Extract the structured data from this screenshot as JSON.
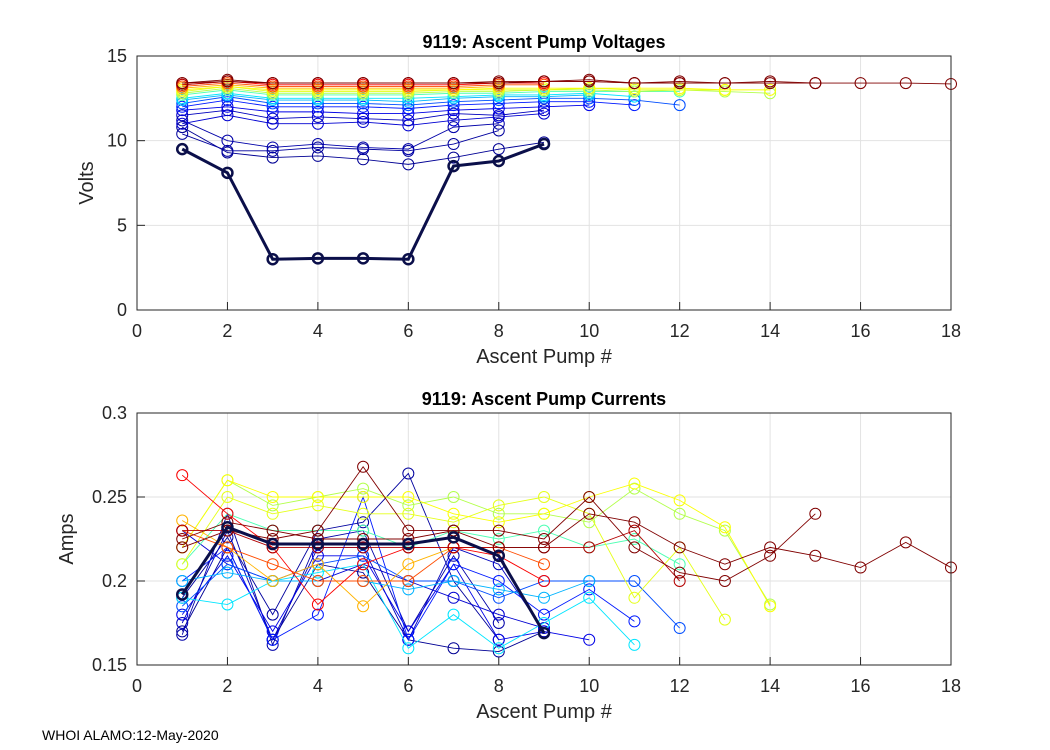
{
  "footer": "WHOI ALAMO:12-May-2020",
  "chart_data": [
    {
      "type": "line",
      "title": "9119: Ascent Pump Voltages",
      "xlabel": "Ascent Pump #",
      "ylabel": "Volts",
      "xlim": [
        0,
        18
      ],
      "ylim": [
        0,
        15
      ],
      "xticks": [
        0,
        2,
        4,
        6,
        8,
        10,
        12,
        14,
        16,
        18
      ],
      "yticks": [
        0,
        5,
        10,
        15
      ],
      "ytick_labels": [
        "0",
        "5",
        "10",
        "15"
      ],
      "grid": true,
      "value_key": "volts"
    },
    {
      "type": "line",
      "title": "9119: Ascent Pump Currents",
      "xlabel": "Ascent Pump #",
      "ylabel": "Amps",
      "xlim": [
        0,
        18
      ],
      "ylim": [
        0.15,
        0.3
      ],
      "xticks": [
        0,
        2,
        4,
        6,
        8,
        10,
        12,
        14,
        16,
        18
      ],
      "yticks": [
        0.15,
        0.2,
        0.25,
        0.3
      ],
      "ytick_labels": [
        "0.15",
        "0.2",
        "0.25",
        "0.3"
      ],
      "grid": true,
      "value_key": "amps"
    }
  ],
  "series": [
    {
      "c": 0.02,
      "volts": [
        10.8,
        9.3,
        9.0,
        9.1,
        8.9,
        8.6,
        9.0,
        9.5,
        9.9
      ],
      "amps": [
        0.17,
        0.22,
        0.165,
        0.21,
        0.205,
        0.165,
        0.16,
        0.158,
        0.17
      ]
    },
    {
      "c": 0.03,
      "volts": [
        10.4,
        9.4,
        9.4,
        9.6,
        9.5,
        9.4,
        9.8,
        10.6
      ],
      "amps": [
        0.19,
        0.226,
        0.18,
        0.23,
        0.235,
        0.264,
        0.2,
        0.165
      ]
    },
    {
      "c": 0.04,
      "volts": [
        11.2,
        10.0,
        9.6,
        9.8,
        9.6,
        9.5,
        10.8,
        11.0
      ],
      "amps": [
        0.168,
        0.24,
        0.162,
        0.225,
        0.23,
        0.17,
        0.215,
        0.175
      ]
    },
    {
      "c": 0.06,
      "volts": [
        11.5,
        11.8,
        11.3,
        11.4,
        11.3,
        11.2,
        11.6,
        11.5,
        11.8
      ],
      "amps": [
        0.175,
        0.23,
        0.165,
        0.22,
        0.22,
        0.165,
        0.22,
        0.21,
        0.17
      ]
    },
    {
      "c": 0.08,
      "volts": [
        11.0,
        11.5,
        11.0,
        11.0,
        11.1,
        10.9,
        11.2,
        11.4,
        11.6
      ],
      "amps": [
        0.23,
        0.21,
        0.2,
        0.2,
        0.21,
        0.2,
        0.19,
        0.18,
        0.172
      ]
    },
    {
      "c": 0.1,
      "volts": [
        11.8,
        12.0,
        11.7,
        11.7,
        11.6,
        11.6,
        11.8,
        11.9,
        12.0,
        12.1
      ],
      "amps": [
        0.18,
        0.215,
        0.17,
        0.215,
        0.215,
        0.17,
        0.21,
        0.165,
        0.17,
        0.165
      ]
    },
    {
      "c": 0.15,
      "volts": [
        12.0,
        12.4,
        12.0,
        12.0,
        12.0,
        11.9,
        12.1,
        12.2,
        12.3,
        12.3,
        12.1
      ],
      "amps": [
        0.2,
        0.22,
        0.165,
        0.18,
        0.25,
        0.165,
        0.21,
        0.2,
        0.18,
        0.195,
        0.176
      ]
    },
    {
      "c": 0.2,
      "volts": [
        12.2,
        12.6,
        12.2,
        12.2,
        12.2,
        12.1,
        12.3,
        12.4,
        12.5,
        12.5,
        12.4,
        12.1
      ],
      "amps": [
        0.185,
        0.21,
        0.2,
        0.21,
        0.215,
        0.2,
        0.2,
        0.19,
        0.2,
        0.2,
        0.2,
        0.172
      ]
    },
    {
      "c": 0.3,
      "volts": [
        12.4,
        12.7,
        12.4,
        12.4,
        12.4,
        12.3,
        12.5,
        12.6,
        12.6,
        12.7
      ],
      "amps": [
        0.2,
        0.205,
        0.2,
        0.2,
        0.2,
        0.195,
        0.2,
        0.195,
        0.19,
        0.2
      ]
    },
    {
      "c": 0.35,
      "volts": [
        12.5,
        12.8,
        12.5,
        12.5,
        12.5,
        12.5,
        12.6,
        12.7,
        12.7,
        12.8,
        12.6
      ],
      "amps": [
        0.19,
        0.186,
        0.2,
        0.205,
        0.21,
        0.16,
        0.18,
        0.16,
        0.175,
        0.19,
        0.162
      ]
    },
    {
      "c": 0.45,
      "volts": [
        12.7,
        13.0,
        12.7,
        12.7,
        12.7,
        12.7,
        12.8,
        12.8,
        12.9,
        12.9,
        12.9,
        12.9
      ],
      "amps": [
        0.21,
        0.24,
        0.23,
        0.23,
        0.23,
        0.22,
        0.23,
        0.225,
        0.23,
        0.22,
        0.225,
        0.21
      ]
    },
    {
      "c": 0.55,
      "volts": [
        12.8,
        13.1,
        12.8,
        12.8,
        12.8,
        12.8,
        12.9,
        12.9,
        13.0,
        13.0,
        12.9,
        13.0,
        12.9,
        12.8
      ],
      "amps": [
        0.22,
        0.26,
        0.245,
        0.25,
        0.255,
        0.245,
        0.25,
        0.24,
        0.24,
        0.235,
        0.255,
        0.24,
        0.23,
        0.186
      ]
    },
    {
      "c": 0.6,
      "volts": [
        12.9,
        13.2,
        12.9,
        12.9,
        12.9,
        12.9,
        13.0,
        13.0,
        13.0,
        13.1,
        13.0,
        13.0,
        13.0
      ],
      "amps": [
        0.21,
        0.25,
        0.24,
        0.245,
        0.24,
        0.24,
        0.235,
        0.245,
        0.25,
        0.24,
        0.19,
        0.22,
        0.177
      ]
    },
    {
      "c": 0.62,
      "volts": [
        13.0,
        13.2,
        13.0,
        13.0,
        13.0,
        13.0,
        13.0,
        13.1,
        13.1,
        13.1,
        13.1,
        13.1,
        13.0,
        13.0
      ],
      "amps": [
        0.22,
        0.26,
        0.25,
        0.25,
        0.25,
        0.25,
        0.24,
        0.235,
        0.24,
        0.25,
        0.258,
        0.248,
        0.232,
        0.185
      ]
    },
    {
      "c": 0.7,
      "volts": [
        13.1,
        13.3,
        13.1,
        13.1,
        13.1,
        13.1,
        13.1,
        13.2
      ],
      "amps": [
        0.236,
        0.22,
        0.2,
        0.21,
        0.185,
        0.21,
        0.22,
        0.22
      ]
    },
    {
      "c": 0.8,
      "volts": [
        13.2,
        13.4,
        13.2,
        13.2,
        13.2,
        13.2,
        13.2,
        13.3,
        13.3
      ],
      "amps": [
        0.23,
        0.22,
        0.21,
        0.2,
        0.2,
        0.2,
        0.22,
        0.22,
        0.21
      ]
    },
    {
      "c": 0.88,
      "volts": [
        13.3,
        13.5,
        13.3,
        13.3,
        13.3,
        13.3,
        13.3,
        13.4,
        13.4
      ],
      "amps": [
        0.263,
        0.24,
        0.22,
        0.186,
        0.21,
        0.22,
        0.22,
        0.215,
        0.2
      ]
    },
    {
      "c": 0.95,
      "volts": [
        13.3,
        13.5,
        13.4,
        13.4,
        13.4,
        13.4,
        13.4,
        13.4,
        13.5,
        13.5,
        13.4,
        13.4
      ],
      "amps": [
        0.23,
        0.23,
        0.22,
        0.22,
        0.22,
        0.22,
        0.22,
        0.22,
        0.22,
        0.22,
        0.23,
        0.2
      ]
    },
    {
      "c": 1.0,
      "volts": [
        13.4,
        13.6,
        13.4,
        13.4,
        13.4,
        13.4,
        13.4,
        13.5,
        13.5,
        13.6,
        13.4,
        13.5,
        13.4,
        13.5,
        13.4
      ],
      "amps": [
        0.225,
        0.235,
        0.23,
        0.225,
        0.225,
        0.225,
        0.23,
        0.23,
        0.225,
        0.25,
        0.22,
        0.205,
        0.2,
        0.215,
        0.24
      ]
    },
    {
      "c": 1.0,
      "volts": [
        13.4,
        13.5,
        13.4,
        13.4,
        13.4,
        13.4,
        13.4,
        13.4,
        13.5,
        13.5,
        13.4,
        13.4,
        13.4,
        13.4,
        13.4,
        13.4,
        13.4,
        13.35
      ],
      "amps": [
        0.22,
        0.23,
        0.225,
        0.23,
        0.268,
        0.23,
        0.23,
        0.22,
        0.22,
        0.24,
        0.235,
        0.22,
        0.21,
        0.22,
        0.215,
        0.208,
        0.223,
        0.208
      ]
    }
  ],
  "highlight": {
    "color": "#0b0f4a",
    "volts": [
      9.5,
      8.1,
      3.0,
      3.05,
      3.05,
      3.0,
      8.5,
      8.8,
      9.8
    ],
    "amps": [
      0.192,
      0.232,
      0.222,
      0.222,
      0.222,
      0.222,
      0.226,
      0.215,
      0.169
    ]
  }
}
